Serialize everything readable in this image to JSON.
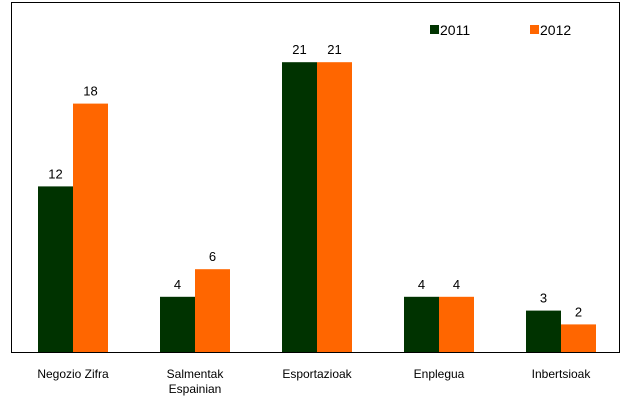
{
  "chart_data": {
    "type": "bar",
    "categories": [
      [
        "Negozio Zifra"
      ],
      [
        "Salmentak",
        "Espainian"
      ],
      [
        "Esportazioak"
      ],
      [
        "Enplegua"
      ],
      [
        "Inbertsioak"
      ]
    ],
    "series": [
      {
        "name": "2011",
        "values": [
          12,
          4,
          21,
          4,
          3
        ],
        "color": "#003300"
      },
      {
        "name": "2012",
        "values": [
          18,
          6,
          21,
          4,
          2
        ],
        "color": "#FF6600"
      }
    ],
    "ylim": [
      0,
      25
    ],
    "grid": false,
    "legend_position": "top-right",
    "title": "",
    "xlabel": "",
    "ylabel": ""
  }
}
